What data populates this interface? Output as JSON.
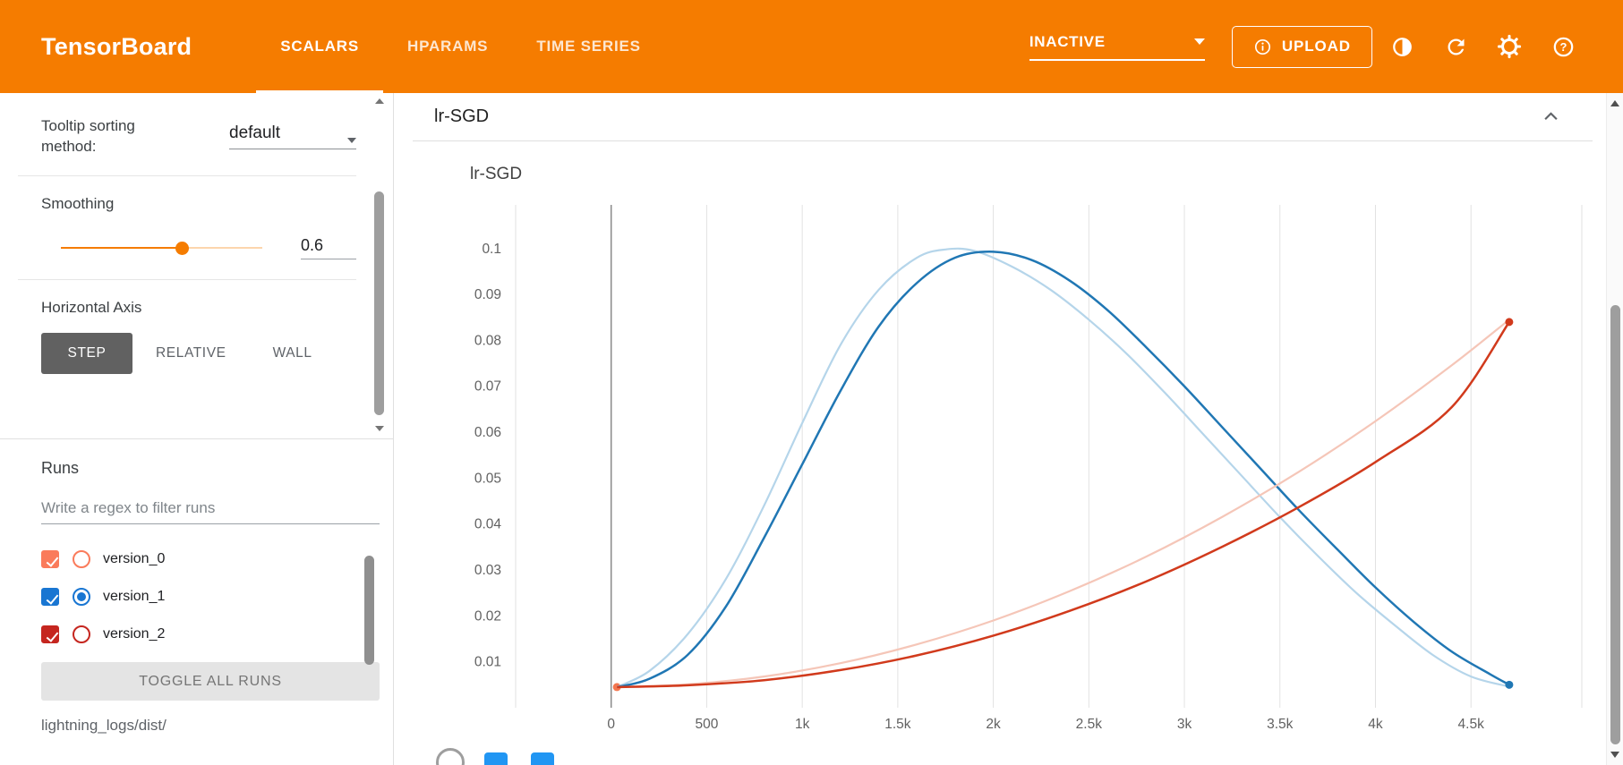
{
  "header": {
    "logo": "TensorBoard",
    "tabs": [
      {
        "label": "SCALARS",
        "active": true
      },
      {
        "label": "HPARAMS",
        "active": false
      },
      {
        "label": "TIME SERIES",
        "active": false
      }
    ],
    "status_dropdown": {
      "value": "INACTIVE"
    },
    "upload_button": {
      "label": "UPLOAD"
    },
    "icons": [
      "contrast-icon",
      "refresh-icon",
      "gear-icon",
      "help-icon"
    ]
  },
  "sidebar": {
    "tooltip_sorting": {
      "label": "Tooltip sorting method:",
      "value": "default"
    },
    "smoothing": {
      "label": "Smoothing",
      "value": "0.6",
      "fraction": 0.6,
      "accent": "#f57c00"
    },
    "horizontal_axis": {
      "label": "Horizontal Axis",
      "options": [
        {
          "label": "STEP",
          "active": true
        },
        {
          "label": "RELATIVE",
          "active": false
        },
        {
          "label": "WALL",
          "active": false
        }
      ]
    },
    "runs": {
      "label": "Runs",
      "filter_placeholder": "Write a regex to filter runs",
      "items": [
        {
          "name": "version_0",
          "color": "#fa7b5b",
          "checked": true,
          "radio_selected": false
        },
        {
          "name": "version_1",
          "color": "#1976d2",
          "checked": true,
          "radio_selected": true
        },
        {
          "name": "version_2",
          "color": "#c5261f",
          "checked": true,
          "radio_selected": false
        }
      ],
      "toggle_all_label": "TOGGLE ALL RUNS",
      "log_path": "lightning_logs/dist/"
    }
  },
  "main": {
    "card_title": "lr-SGD",
    "footer_icons": [
      {
        "shape": "circle",
        "color": "#9e9e9e"
      },
      {
        "shape": "square",
        "color": "#2196f3"
      },
      {
        "shape": "square",
        "color": "#2196f3"
      }
    ]
  },
  "chart_data": {
    "type": "line",
    "title": "lr-SGD",
    "xlabel": "",
    "ylabel": "",
    "xlim": [
      -500,
      5080
    ],
    "ylim": [
      0,
      0.1095
    ],
    "grid": "vertical",
    "legend": "none",
    "smoothing_weight": 0.6,
    "zero_line_x": 0,
    "x_ticks": [
      {
        "v": 0,
        "label": "0"
      },
      {
        "v": 500,
        "label": "500"
      },
      {
        "v": 1000,
        "label": "1k"
      },
      {
        "v": 1500,
        "label": "1.5k"
      },
      {
        "v": 2000,
        "label": "2k"
      },
      {
        "v": 2500,
        "label": "2.5k"
      },
      {
        "v": 3000,
        "label": "3k"
      },
      {
        "v": 3500,
        "label": "3.5k"
      },
      {
        "v": 4000,
        "label": "4k"
      },
      {
        "v": 4500,
        "label": "4.5k"
      }
    ],
    "y_ticks": [
      {
        "v": 0.01,
        "label": "0.01"
      },
      {
        "v": 0.02,
        "label": "0.02"
      },
      {
        "v": 0.03,
        "label": "0.03"
      },
      {
        "v": 0.04,
        "label": "0.04"
      },
      {
        "v": 0.05,
        "label": "0.05"
      },
      {
        "v": 0.06,
        "label": "0.06"
      },
      {
        "v": 0.07,
        "label": "0.07"
      },
      {
        "v": 0.08,
        "label": "0.08"
      },
      {
        "v": 0.09,
        "label": "0.09"
      },
      {
        "v": 0.1,
        "label": "0.1"
      }
    ],
    "series": [
      {
        "name": "version_0",
        "color": "#f4764e",
        "raw_color": "#f4764e",
        "raw": [
          [
            30,
            0.0045
          ]
        ],
        "smoothed": [
          [
            30,
            0.0045
          ]
        ],
        "end_dot": [
          30,
          0.0045
        ]
      },
      {
        "name": "version_1",
        "color": "#2077b4",
        "raw_color": "#b5d5ea",
        "raw": [
          [
            30,
            0.0045
          ],
          [
            200,
            0.008
          ],
          [
            400,
            0.016
          ],
          [
            600,
            0.028
          ],
          [
            800,
            0.044
          ],
          [
            1000,
            0.062
          ],
          [
            1200,
            0.079
          ],
          [
            1400,
            0.091
          ],
          [
            1600,
            0.098
          ],
          [
            1750,
            0.0998
          ],
          [
            1900,
            0.0995
          ],
          [
            2100,
            0.096
          ],
          [
            2300,
            0.091
          ],
          [
            2500,
            0.0845
          ],
          [
            2700,
            0.077
          ],
          [
            2900,
            0.0685
          ],
          [
            3100,
            0.0595
          ],
          [
            3300,
            0.0505
          ],
          [
            3500,
            0.0415
          ],
          [
            3700,
            0.033
          ],
          [
            3900,
            0.025
          ],
          [
            4100,
            0.018
          ],
          [
            4300,
            0.0115
          ],
          [
            4500,
            0.0068
          ],
          [
            4700,
            0.0046
          ]
        ],
        "smoothed": [
          [
            30,
            0.0045
          ],
          [
            200,
            0.0063
          ],
          [
            400,
            0.0115
          ],
          [
            600,
            0.022
          ],
          [
            800,
            0.037
          ],
          [
            1000,
            0.053
          ],
          [
            1200,
            0.069
          ],
          [
            1400,
            0.083
          ],
          [
            1600,
            0.0925
          ],
          [
            1800,
            0.098
          ],
          [
            2000,
            0.0993
          ],
          [
            2200,
            0.0975
          ],
          [
            2400,
            0.093
          ],
          [
            2600,
            0.0865
          ],
          [
            2800,
            0.0785
          ],
          [
            3000,
            0.07
          ],
          [
            3200,
            0.061
          ],
          [
            3400,
            0.052
          ],
          [
            3600,
            0.043
          ],
          [
            3800,
            0.0345
          ],
          [
            4000,
            0.0262
          ],
          [
            4200,
            0.0187
          ],
          [
            4400,
            0.0122
          ],
          [
            4600,
            0.0073
          ],
          [
            4700,
            0.005
          ]
        ],
        "end_dot": [
          4700,
          0.005
        ]
      },
      {
        "name": "version_2",
        "color": "#d13a1c",
        "raw_color": "#f5c6b8",
        "raw": [
          [
            30,
            0.0045
          ],
          [
            400,
            0.0051
          ],
          [
            800,
            0.0068
          ],
          [
            1200,
            0.0097
          ],
          [
            1600,
            0.0138
          ],
          [
            2000,
            0.019
          ],
          [
            2400,
            0.0254
          ],
          [
            2800,
            0.0329
          ],
          [
            3200,
            0.0416
          ],
          [
            3600,
            0.0514
          ],
          [
            4000,
            0.0624
          ],
          [
            4400,
            0.0746
          ],
          [
            4700,
            0.0845
          ]
        ],
        "smoothed": [
          [
            30,
            0.0045
          ],
          [
            400,
            0.0049
          ],
          [
            800,
            0.006
          ],
          [
            1200,
            0.0082
          ],
          [
            1600,
            0.0114
          ],
          [
            2000,
            0.0157
          ],
          [
            2400,
            0.0211
          ],
          [
            2800,
            0.0275
          ],
          [
            3200,
            0.0351
          ],
          [
            3600,
            0.0437
          ],
          [
            4000,
            0.0535
          ],
          [
            4400,
            0.0655
          ],
          [
            4700,
            0.084
          ]
        ],
        "end_dot": [
          4700,
          0.084
        ]
      }
    ]
  }
}
